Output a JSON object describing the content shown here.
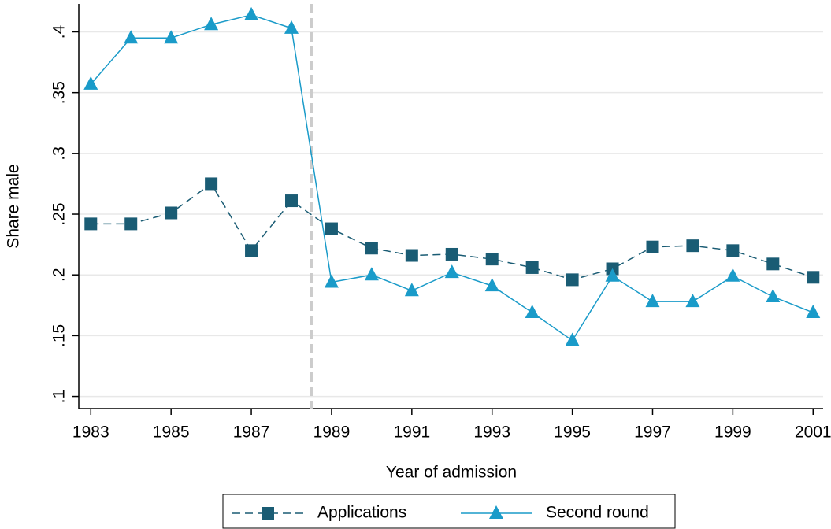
{
  "chart_data": {
    "type": "line",
    "x_label": "Year of admission",
    "y_label": "Share male",
    "x": [
      1983,
      1984,
      1985,
      1986,
      1987,
      1988,
      1989,
      1990,
      1991,
      1992,
      1993,
      1994,
      1995,
      1996,
      1997,
      1998,
      1999,
      2000,
      2001
    ],
    "series": [
      {
        "name": "Applications",
        "color": "#1a5c74",
        "dash": true,
        "marker": "square",
        "values": [
          0.242,
          0.242,
          0.251,
          0.275,
          0.22,
          0.261,
          0.238,
          0.222,
          0.216,
          0.217,
          0.213,
          0.206,
          0.196,
          0.205,
          0.223,
          0.224,
          0.22,
          0.209,
          0.198
        ]
      },
      {
        "name": "Second round",
        "color": "#1a9bc9",
        "dash": false,
        "marker": "triangle",
        "values": [
          0.357,
          0.395,
          0.395,
          0.406,
          0.414,
          0.403,
          0.194,
          0.2,
          0.187,
          0.202,
          0.191,
          0.169,
          0.146,
          0.199,
          0.178,
          0.178,
          0.199,
          0.182,
          0.169
        ]
      }
    ],
    "reference_line": 1988.5,
    "xlim": [
      1982.7,
      2001.25
    ],
    "ylim": [
      0.09,
      0.423
    ],
    "xticks": [
      1983,
      1985,
      1987,
      1989,
      1991,
      1993,
      1995,
      1997,
      1999,
      2001
    ],
    "yticks": [
      {
        "value": 0.1,
        "label": ".1"
      },
      {
        "value": 0.15,
        "label": ".15"
      },
      {
        "value": 0.2,
        "label": ".2"
      },
      {
        "value": 0.25,
        "label": ".25"
      },
      {
        "value": 0.3,
        "label": ".3"
      },
      {
        "value": 0.35,
        "label": ".35"
      },
      {
        "value": 0.4,
        "label": ".4"
      }
    ],
    "grid": true,
    "legend": "bottom"
  }
}
